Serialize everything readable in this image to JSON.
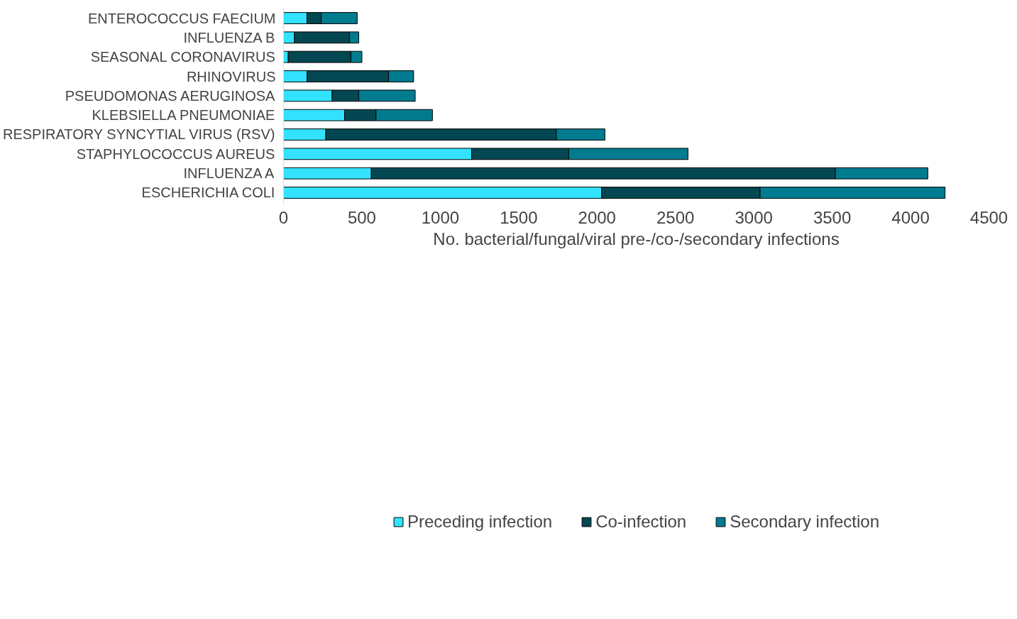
{
  "chart_data": {
    "type": "bar",
    "orientation": "horizontal",
    "stacked": true,
    "xlabel": "No. bacterial/fungal/viral pre-/co-/secondary infections",
    "categories": [
      "ENTEROCOCCUS FAECIUM",
      "INFLUENZA B",
      "SEASONAL CORONAVIRUS",
      "RHINOVIRUS",
      "PSEUDOMONAS AERUGINOSA",
      "KLEBSIELLA PNEUMONIAE",
      "RESPIRATORY SYNCYTIAL VIRUS (RSV)",
      "STAPHYLOCOCCUS AUREUS",
      "INFLUENZA A",
      "ESCHERICHIA COLI"
    ],
    "series": [
      {
        "name": "Preceding infection",
        "color": "#33e2ff",
        "values": [
          150,
          70,
          30,
          150,
          310,
          390,
          270,
          1200,
          560,
          2030
        ]
      },
      {
        "name": "Co-infection",
        "color": "#034752",
        "values": [
          90,
          350,
          400,
          520,
          170,
          200,
          1470,
          620,
          2960,
          1010
        ]
      },
      {
        "name": "Secondary infection",
        "color": "#007b8f",
        "values": [
          230,
          60,
          70,
          160,
          360,
          360,
          310,
          760,
          590,
          1180
        ]
      }
    ],
    "xlim": [
      0,
      4500
    ],
    "xticks": [
      0,
      500,
      1000,
      1500,
      2000,
      2500,
      3000,
      3500,
      4000,
      4500
    ],
    "grid": false,
    "legend": "bottom"
  }
}
